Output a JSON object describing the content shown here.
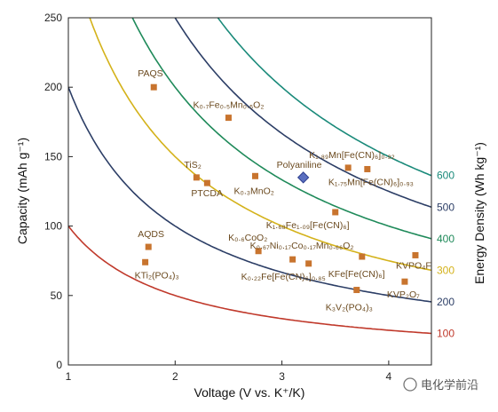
{
  "chart_data": {
    "type": "scatter",
    "xlabel": "Voltage (V vs. K⁺/K)",
    "ylabel": "Capacity (mAh g⁻¹)",
    "y2label": "Energy Density (Wh kg⁻¹)",
    "xlim": [
      1,
      4.4
    ],
    "ylim": [
      0,
      250
    ],
    "x_ticks": [
      1,
      2,
      3,
      4
    ],
    "y_ticks": [
      0,
      50,
      100,
      150,
      200,
      250
    ],
    "grid": false,
    "iso_energy_curves": [
      {
        "energy": 100,
        "label": "100",
        "color": "#c0392b"
      },
      {
        "energy": 200,
        "label": "200",
        "color": "#2c3e66"
      },
      {
        "energy": 300,
        "label": "300",
        "color": "#d4b21a"
      },
      {
        "energy": 400,
        "label": "400",
        "color": "#1f8a5a"
      },
      {
        "energy": 500,
        "label": "500",
        "color": "#2c3e66"
      },
      {
        "energy": 600,
        "label": "600",
        "color": "#1a8a7a"
      }
    ],
    "points": [
      {
        "label": "PAQS",
        "x": 1.8,
        "y": 200,
        "marker": "square"
      },
      {
        "label": "K₀.₇Fe₀.₅Mn₀.₅O₂",
        "x": 2.5,
        "y": 178,
        "marker": "square"
      },
      {
        "label": "K₁.₈₉Mn[Fe(CN)₆]₀.₉₂",
        "x": 3.62,
        "y": 142,
        "marker": "square"
      },
      {
        "label": "K₁.₇₅Mn[Fe(CN)₆]₀.₉₃",
        "x": 3.8,
        "y": 141,
        "marker": "square"
      },
      {
        "label": "Polyaniline",
        "x": 3.2,
        "y": 135,
        "marker": "diamond"
      },
      {
        "label": "TiS₂",
        "x": 2.2,
        "y": 135,
        "marker": "square"
      },
      {
        "label": "PTCDA",
        "x": 2.3,
        "y": 131,
        "marker": "square"
      },
      {
        "label": "K₀.₃MnO₂",
        "x": 2.75,
        "y": 136,
        "marker": "square"
      },
      {
        "label": "K₁.₆₈Fe₁.₀₉[Fe(CN)₆]",
        "x": 3.5,
        "y": 110,
        "marker": "square"
      },
      {
        "label": "AQDS",
        "x": 1.75,
        "y": 85,
        "marker": "square"
      },
      {
        "label": "KTi₂(PO₄)₃",
        "x": 1.72,
        "y": 74,
        "marker": "square"
      },
      {
        "label": "K₀.₆CoO₂",
        "x": 2.78,
        "y": 82,
        "marker": "square"
      },
      {
        "label": "K₀.₆₇Ni₀.₁₇Co₀.₁₇Mn₀.₆₆O₂",
        "x": 3.1,
        "y": 76,
        "marker": "square"
      },
      {
        "label": "K₀.₂₂Fe[Fe(CN)₆]₀.₈₅",
        "x": 3.25,
        "y": 73,
        "marker": "square"
      },
      {
        "label": "KFe[Fe(CN)₆]",
        "x": 3.75,
        "y": 78,
        "marker": "square"
      },
      {
        "label": "KVPO₄F",
        "x": 4.25,
        "y": 79,
        "marker": "square"
      },
      {
        "label": "K₃V₂(PO₄)₃",
        "x": 3.7,
        "y": 54,
        "marker": "square"
      },
      {
        "label": "KVP₂O₇",
        "x": 4.15,
        "y": 60,
        "marker": "square"
      }
    ],
    "marker_color": "#c8742e",
    "diamond_color": "#5a6fc0"
  },
  "watermark": "电化学前沿"
}
